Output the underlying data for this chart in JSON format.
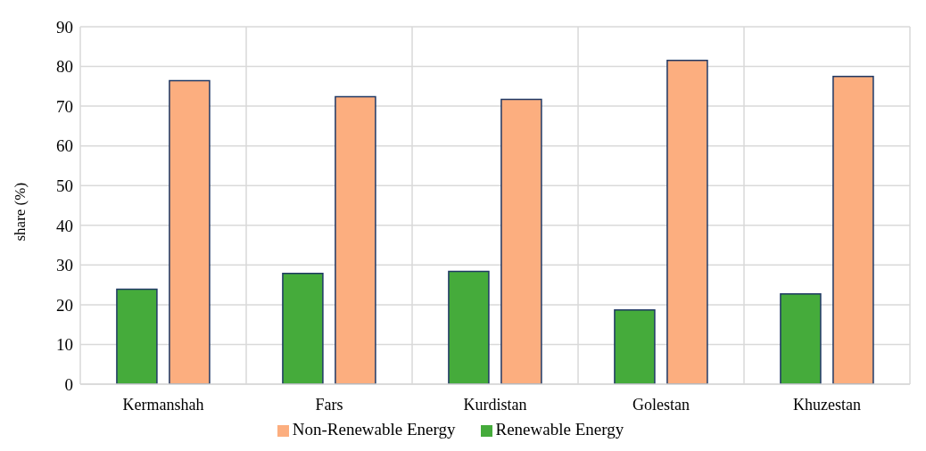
{
  "chart_data": {
    "type": "bar",
    "ylabel": "share (%)",
    "categories": [
      "Kermanshah",
      "Fars",
      "Kurdistan",
      "Golestan",
      "Khuzestan"
    ],
    "series": [
      {
        "name": "Renewable Energy",
        "color": "#45ab3b",
        "values": [
          23.9,
          27.9,
          28.4,
          18.7,
          22.7
        ]
      },
      {
        "name": "Non-Renewable Energy",
        "color": "#fcae7f",
        "values": [
          76.4,
          72.4,
          71.7,
          81.5,
          77.5
        ]
      }
    ],
    "ylim": [
      0,
      90
    ],
    "yticks": [
      0,
      10,
      20,
      30,
      40,
      50,
      60,
      70,
      80,
      90
    ],
    "grid": true,
    "legend": "bottom"
  }
}
